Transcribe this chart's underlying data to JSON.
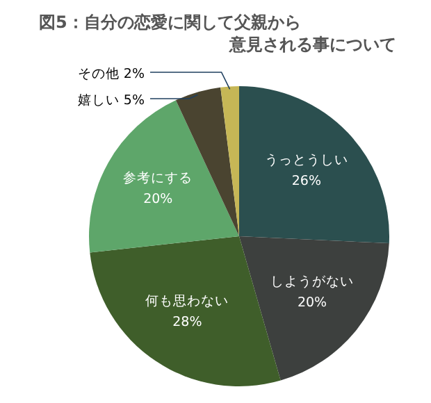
{
  "chart_data": {
    "type": "pie",
    "title": "図5：自分の恋愛に関して父親から意見される事について",
    "categories": [
      "うっとうしい",
      "しようがない",
      "何も思わない",
      "参考にする",
      "嬉しい",
      "その他"
    ],
    "values": [
      26,
      20,
      28,
      20,
      5,
      2
    ],
    "value_labels": [
      "26%",
      "20%",
      "28%",
      "20%",
      "5%",
      "2%"
    ],
    "colors": [
      "#2b4f4f",
      "#3d403e",
      "#3f5e2a",
      "#5ea66a",
      "#4a4430",
      "#c6b756"
    ]
  }
}
